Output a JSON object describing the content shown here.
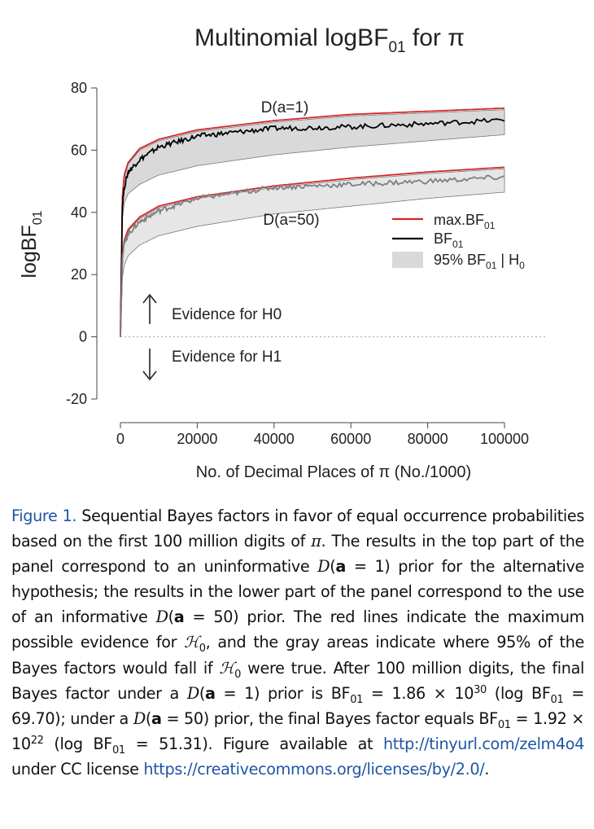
{
  "chart_data": {
    "type": "line",
    "title": "Multinomial logBF",
    "title_sub": "01",
    "title_tail": " for π",
    "xlabel": "No. of Decimal Places of π (No./1000)",
    "ylabel": "logBF",
    "ylabel_sub": "01",
    "xlim": [
      0,
      100000
    ],
    "ylim": [
      -20,
      80
    ],
    "xticks": [
      0,
      20000,
      40000,
      60000,
      80000,
      100000
    ],
    "yticks": [
      -20,
      0,
      20,
      40,
      60,
      80
    ],
    "grid": false,
    "legend_position": "right",
    "legend": [
      {
        "label": "max.BF",
        "sub": "01",
        "tail": "",
        "kind": "line",
        "color": "#d62728"
      },
      {
        "label": "BF",
        "sub": "01",
        "tail": "",
        "kind": "line",
        "color": "#000000"
      },
      {
        "label": "95% BF",
        "sub": "01",
        "tail": " | H",
        "sub2": "0",
        "kind": "band",
        "color": "#d9d9d9"
      }
    ],
    "annotations": {
      "upper_group": "D(a=1)",
      "lower_group": "D(a=50)",
      "evidence_h0": "Evidence for H0",
      "evidence_h1": "Evidence for H1"
    },
    "series": [
      {
        "name": "D(a=1) max.BF01",
        "color": "#d62728",
        "x": [
          0,
          500,
          1000,
          2000,
          5000,
          10000,
          20000,
          40000,
          60000,
          80000,
          100000
        ],
        "y": [
          0,
          45,
          52,
          56,
          60.5,
          63.5,
          66.5,
          69.5,
          71.5,
          72.5,
          73.5
        ]
      },
      {
        "name": "D(a=1) BF01",
        "color": "#000000",
        "x": [
          0,
          500,
          1000,
          2000,
          5000,
          10000,
          20000,
          40000,
          60000,
          80000,
          100000
        ],
        "y": [
          0,
          42,
          48,
          53,
          57,
          61,
          64.5,
          67,
          67.5,
          68.5,
          69.7
        ]
      },
      {
        "name": "D(a=1) 95% BF01 | H0",
        "color": "#d9d9d9",
        "x": [
          0,
          500,
          1000,
          2000,
          5000,
          10000,
          20000,
          40000,
          60000,
          80000,
          100000
        ],
        "upper": [
          0,
          44,
          51,
          55.5,
          60,
          63,
          66,
          69,
          71,
          72,
          73
        ],
        "lower": [
          0,
          38,
          43,
          46,
          49,
          52,
          55,
          58.5,
          61,
          63,
          65
        ]
      },
      {
        "name": "D(a=50) max.BF01",
        "color": "#d62728",
        "x": [
          0,
          500,
          1000,
          2000,
          5000,
          10000,
          20000,
          40000,
          60000,
          80000,
          100000
        ],
        "y": [
          0,
          26,
          31,
          34.5,
          38.5,
          42,
          45,
          48.5,
          51,
          53,
          54.5
        ]
      },
      {
        "name": "D(a=50) BF01",
        "color": "#7f7f7f",
        "x": [
          0,
          500,
          1000,
          2000,
          5000,
          10000,
          20000,
          40000,
          60000,
          80000,
          100000
        ],
        "y": [
          0,
          25,
          30,
          33,
          37,
          40.5,
          44.5,
          48,
          49,
          50,
          51.31
        ]
      },
      {
        "name": "D(a=50) 95% BF01 | H0",
        "color": "#e6e6e6",
        "x": [
          0,
          500,
          1000,
          2000,
          5000,
          10000,
          20000,
          40000,
          60000,
          80000,
          100000
        ],
        "upper": [
          0,
          25.5,
          30.5,
          34,
          38,
          41.5,
          44.5,
          48,
          50.5,
          52.5,
          54
        ],
        "lower": [
          0,
          19,
          23,
          26,
          29.5,
          32.5,
          35.5,
          39.5,
          42,
          44.5,
          46.5
        ]
      }
    ]
  },
  "caption": {
    "label": "Figure 1.",
    "t1": " Sequential Bayes factors in favor of equal occurrence probabilities based on the first 100 million digits of ",
    "pi1": "π",
    "t2": ". The results in the top part of the panel correspond to an uninformative ",
    "d1": "D",
    "a1": "a",
    "eq1": " = 1)",
    "t3": " prior for the alternative hypothesis; the results in the lower part of the panel correspond to the use of an informative ",
    "d2": "D",
    "a2": "a",
    "eq2": " = 50)",
    "t4": " prior. The red lines indicate the maximum possible evidence for ",
    "h1": "ℋ",
    "h1sub": "0",
    "t5": ", and the gray areas indicate where 95% of the Bayes factors would fall if ",
    "h2": "ℋ",
    "h2sub": "0",
    "t6": " were true. After 100 million digits, the final Bayes factor under a ",
    "d3": "D",
    "a3": "a",
    "eq3": " = 1)",
    "t7": " prior is BF",
    "s1": "01",
    "t8": " = 1.86 × 10",
    "e1": "30",
    "t9": " (log BF",
    "s2": "01",
    "t10": " = 69.70); under a ",
    "d4": "D",
    "a4": "a",
    "eq4": " = 50)",
    "t11": " prior, the final Bayes factor equals BF",
    "s3": "01",
    "t12": " = 1.92 × 10",
    "e2": "22",
    "t13": " (log BF",
    "s4": "01",
    "t14": " = 51.31). Figure available at ",
    "link1": "http://tinyurl.com/zelm4o4",
    "t15": " under CC license ",
    "link2": "https://creativecommons.org/licenses/by/2.0/",
    "t16": "."
  }
}
